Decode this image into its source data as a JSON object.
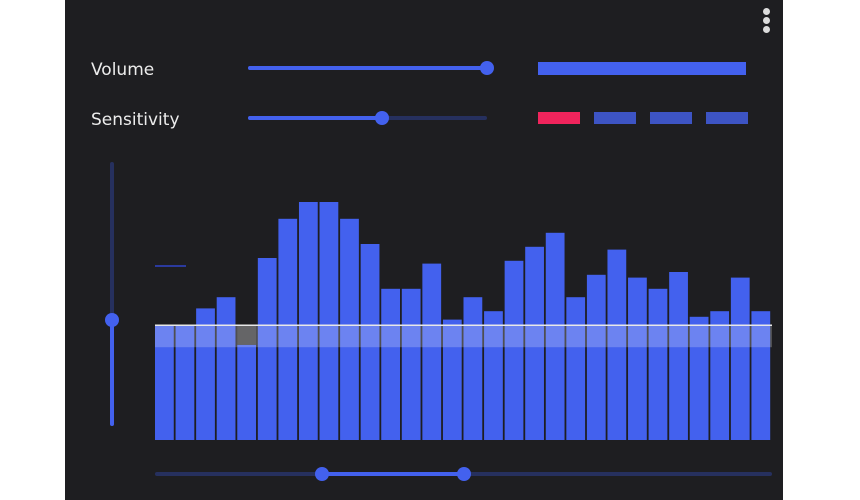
{
  "controls": {
    "volume": {
      "label": "Volume",
      "value": 1.0
    },
    "sensitivity": {
      "label": "Sensitivity",
      "value": 0.56
    }
  },
  "meters": {
    "volume_bar": {
      "color": "#4361ee",
      "level": 1.0
    },
    "sensitivity_segments": [
      {
        "color": "#f0245c"
      },
      {
        "color": "#3d54c4"
      },
      {
        "color": "#3d54c4"
      },
      {
        "color": "#3d54c4"
      }
    ]
  },
  "threshold_slider": {
    "value": 0.4
  },
  "spectrum": {
    "threshold": 0.41,
    "bar_color": "#4361ee",
    "muted_bar_color": "#3a3a3d",
    "bars": [
      0.41,
      0.41,
      0.47,
      0.51,
      0.34,
      0.65,
      0.79,
      0.85,
      0.85,
      0.79,
      0.7,
      0.54,
      0.54,
      0.63,
      0.43,
      0.51,
      0.46,
      0.64,
      0.69,
      0.74,
      0.51,
      0.59,
      0.68,
      0.58,
      0.54,
      0.6,
      0.44,
      0.46,
      0.58,
      0.46
    ]
  },
  "range_selector": {
    "low": 0.27,
    "high": 0.5
  },
  "colors": {
    "accent": "#4361ee",
    "panel": "#1e1e21",
    "track": "#26305e",
    "alert": "#f0245c"
  },
  "icons": {
    "menu": "more-vertical-icon"
  }
}
